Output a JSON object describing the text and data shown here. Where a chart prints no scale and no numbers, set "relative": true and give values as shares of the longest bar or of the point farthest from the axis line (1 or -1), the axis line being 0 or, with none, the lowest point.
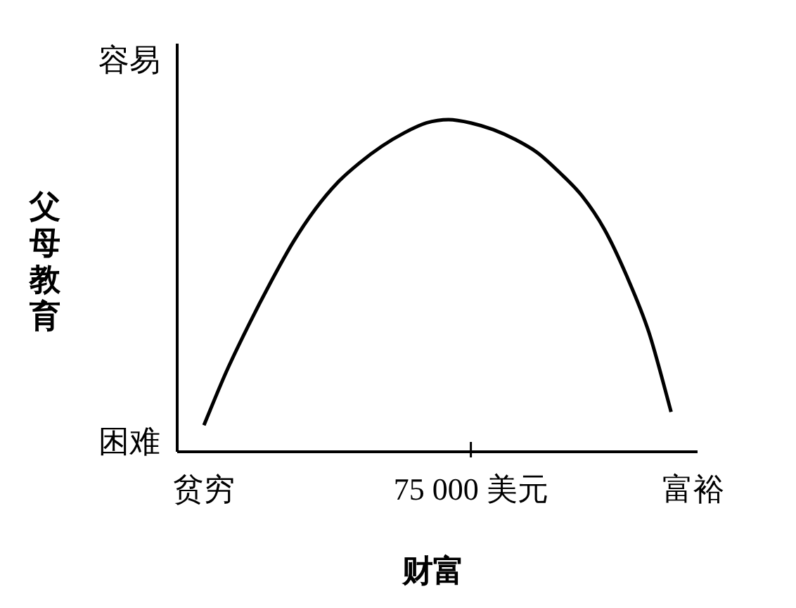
{
  "chart_data": {
    "type": "line",
    "xlabel": "财富",
    "ylabel": "父母教育",
    "relative": true,
    "categories": [
      "贫穷",
      null,
      null,
      null,
      null,
      null,
      null,
      null,
      null,
      null,
      null,
      null,
      "75 000 美元",
      null,
      null,
      null,
      null,
      null,
      null,
      null,
      null,
      null,
      "富裕"
    ],
    "annotations": [
      "容易",
      "困难"
    ],
    "marker": "none",
    "line_style": "solid",
    "series": [
      {
        "color": "#000000",
        "values": [
          0.08,
          0.24,
          0.38,
          0.51,
          0.63,
          0.73,
          0.81,
          0.87,
          0.92,
          0.96,
          0.99,
          1.0,
          0.99,
          0.97,
          0.94,
          0.9,
          0.84,
          0.77,
          0.67,
          0.53,
          0.36,
          0.12,
          null
        ]
      }
    ]
  }
}
